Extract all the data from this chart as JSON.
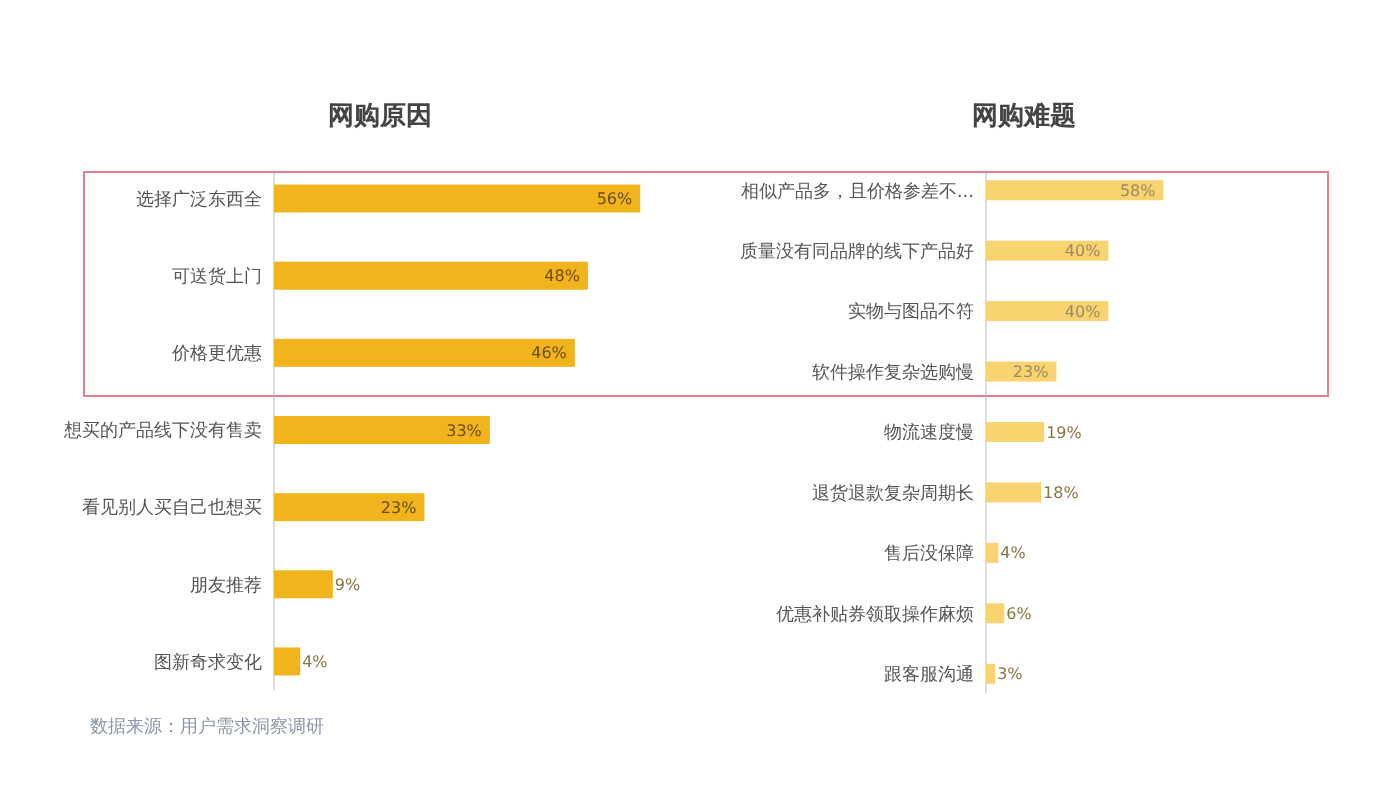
{
  "chart_data": [
    {
      "type": "bar",
      "orientation": "horizontal",
      "title": "网购原因",
      "categories": [
        "选择广泛东西全",
        "可送货上门",
        "价格更优惠",
        "想买的产品线下没有售卖",
        "看见别人买自己也想买",
        "朋友推荐",
        "图新奇求变化"
      ],
      "values": [
        56,
        48,
        46,
        33,
        23,
        9,
        4
      ],
      "value_labels": [
        "56%",
        "48%",
        "46%",
        "33%",
        "23%",
        "9%",
        "4%"
      ],
      "color": "#f2b41c",
      "annotations": [
        "数据来源：用户需求洞察调研"
      ]
    },
    {
      "type": "bar",
      "orientation": "horizontal",
      "title": "网购难题",
      "categories": [
        "相似产品多，且价格参差不...",
        "质量没有同品牌的线下产品好",
        "实物与图品不符",
        "软件操作复杂选购慢",
        "物流速度慢",
        "退货退款复杂周期长",
        "售后没保障",
        "优惠补贴券领取操作麻烦",
        "跟客服沟通"
      ],
      "values": [
        58,
        40,
        40,
        23,
        19,
        18,
        4,
        6,
        3
      ],
      "value_labels": [
        "58%",
        "40%",
        "40%",
        "23%",
        "19%",
        "18%",
        "4%",
        "6%",
        "3%"
      ],
      "color": "#f9d36f"
    }
  ]
}
